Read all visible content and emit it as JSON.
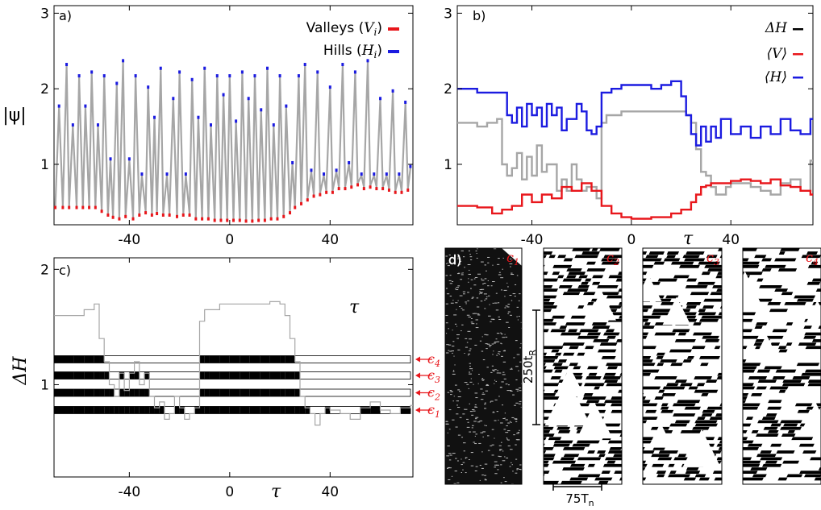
{
  "chart_data": [
    {
      "id": "a",
      "type": "line",
      "panel_label": "a)",
      "ylabel": "|ψ|",
      "xlim": [
        -70,
        73
      ],
      "ylim": [
        0.2,
        3.1
      ],
      "xticks": [
        -40,
        0,
        40
      ],
      "yticks": [
        1,
        2,
        3
      ],
      "legend_position": "top-right",
      "series": [
        {
          "name": "Valleys (V_i)",
          "label_main": "Valleys (",
          "label_sym": "V",
          "label_sub": "i",
          "label_tail": ")",
          "color": "#e8161b",
          "style": "markers"
        },
        {
          "name": "Hills (H_i)",
          "label_main": "Hills (",
          "label_sym": "H",
          "label_sub": "i",
          "label_tail": ")",
          "color": "#1b1be0",
          "style": "markers"
        }
      ],
      "trace_color": "#a6a6a6",
      "peaks": [
        {
          "x": -68,
          "y": 1.75
        },
        {
          "x": -65,
          "y": 2.3
        },
        {
          "x": -62.5,
          "y": 1.5
        },
        {
          "x": -60,
          "y": 2.15
        },
        {
          "x": -57.5,
          "y": 1.75
        },
        {
          "x": -55,
          "y": 2.2
        },
        {
          "x": -52.5,
          "y": 1.5
        },
        {
          "x": -50,
          "y": 2.15
        },
        {
          "x": -47.5,
          "y": 1.05
        },
        {
          "x": -45,
          "y": 2.05
        },
        {
          "x": -42.5,
          "y": 2.35
        },
        {
          "x": -40,
          "y": 1.05
        },
        {
          "x": -37.5,
          "y": 2.15
        },
        {
          "x": -35,
          "y": 0.85
        },
        {
          "x": -32.5,
          "y": 2.0
        },
        {
          "x": -30,
          "y": 1.6
        },
        {
          "x": -27.5,
          "y": 2.25
        },
        {
          "x": -25,
          "y": 0.85
        },
        {
          "x": -22.5,
          "y": 1.85
        },
        {
          "x": -20,
          "y": 2.2
        },
        {
          "x": -17.5,
          "y": 0.85
        },
        {
          "x": -15,
          "y": 2.1
        },
        {
          "x": -12.5,
          "y": 1.6
        },
        {
          "x": -10,
          "y": 2.25
        },
        {
          "x": -7.5,
          "y": 1.5
        },
        {
          "x": -5,
          "y": 2.15
        },
        {
          "x": -2.5,
          "y": 1.9
        },
        {
          "x": 0,
          "y": 2.15
        },
        {
          "x": 2.5,
          "y": 1.55
        },
        {
          "x": 5,
          "y": 2.2
        },
        {
          "x": 7.5,
          "y": 1.85
        },
        {
          "x": 10,
          "y": 2.15
        },
        {
          "x": 12.5,
          "y": 1.7
        },
        {
          "x": 15,
          "y": 2.25
        },
        {
          "x": 17.5,
          "y": 1.5
        },
        {
          "x": 20,
          "y": 2.15
        },
        {
          "x": 22.5,
          "y": 1.75
        },
        {
          "x": 25,
          "y": 1.0
        },
        {
          "x": 27.5,
          "y": 2.15
        },
        {
          "x": 30,
          "y": 2.3
        },
        {
          "x": 32.5,
          "y": 0.9
        },
        {
          "x": 35,
          "y": 2.2
        },
        {
          "x": 37.5,
          "y": 0.85
        },
        {
          "x": 40,
          "y": 2.0
        },
        {
          "x": 42.5,
          "y": 0.9
        },
        {
          "x": 45,
          "y": 2.3
        },
        {
          "x": 47.5,
          "y": 1.0
        },
        {
          "x": 50,
          "y": 2.2
        },
        {
          "x": 52.5,
          "y": 0.85
        },
        {
          "x": 55,
          "y": 2.35
        },
        {
          "x": 57.5,
          "y": 0.85
        },
        {
          "x": 60,
          "y": 1.85
        },
        {
          "x": 62.5,
          "y": 0.85
        },
        {
          "x": 65,
          "y": 1.95
        },
        {
          "x": 67.5,
          "y": 0.85
        },
        {
          "x": 70,
          "y": 1.8
        },
        {
          "x": 72,
          "y": 0.95
        }
      ],
      "valleys": [
        {
          "x": -69.5,
          "y": 0.45
        },
        {
          "x": -66.5,
          "y": 0.45
        },
        {
          "x": -64,
          "y": 0.45
        },
        {
          "x": -61,
          "y": 0.45
        },
        {
          "x": -58.5,
          "y": 0.45
        },
        {
          "x": -56,
          "y": 0.45
        },
        {
          "x": -53.5,
          "y": 0.45
        },
        {
          "x": -51,
          "y": 0.4
        },
        {
          "x": -48.5,
          "y": 0.35
        },
        {
          "x": -46.5,
          "y": 0.32
        },
        {
          "x": -44,
          "y": 0.3
        },
        {
          "x": -41.5,
          "y": 0.33
        },
        {
          "x": -38.5,
          "y": 0.3
        },
        {
          "x": -36,
          "y": 0.35
        },
        {
          "x": -33.5,
          "y": 0.38
        },
        {
          "x": -31,
          "y": 0.35
        },
        {
          "x": -29,
          "y": 0.37
        },
        {
          "x": -26.5,
          "y": 0.35
        },
        {
          "x": -24,
          "y": 0.35
        },
        {
          "x": -21,
          "y": 0.33
        },
        {
          "x": -18.5,
          "y": 0.35
        },
        {
          "x": -16,
          "y": 0.35
        },
        {
          "x": -13.5,
          "y": 0.3
        },
        {
          "x": -11,
          "y": 0.3
        },
        {
          "x": -8.5,
          "y": 0.3
        },
        {
          "x": -6,
          "y": 0.28
        },
        {
          "x": -3.5,
          "y": 0.28
        },
        {
          "x": -1,
          "y": 0.28
        },
        {
          "x": 1.5,
          "y": 0.28
        },
        {
          "x": 4,
          "y": 0.28
        },
        {
          "x": 6.5,
          "y": 0.27
        },
        {
          "x": 9,
          "y": 0.27
        },
        {
          "x": 11.5,
          "y": 0.28
        },
        {
          "x": 14,
          "y": 0.28
        },
        {
          "x": 16.5,
          "y": 0.3
        },
        {
          "x": 19,
          "y": 0.3
        },
        {
          "x": 21.5,
          "y": 0.33
        },
        {
          "x": 24,
          "y": 0.38
        },
        {
          "x": 26,
          "y": 0.45
        },
        {
          "x": 28.5,
          "y": 0.5
        },
        {
          "x": 31,
          "y": 0.55
        },
        {
          "x": 33.5,
          "y": 0.6
        },
        {
          "x": 36,
          "y": 0.62
        },
        {
          "x": 38.5,
          "y": 0.65
        },
        {
          "x": 41,
          "y": 0.65
        },
        {
          "x": 43.5,
          "y": 0.7
        },
        {
          "x": 46,
          "y": 0.7
        },
        {
          "x": 48.5,
          "y": 0.72
        },
        {
          "x": 51,
          "y": 0.75
        },
        {
          "x": 53.5,
          "y": 0.7
        },
        {
          "x": 56,
          "y": 0.72
        },
        {
          "x": 58.5,
          "y": 0.7
        },
        {
          "x": 61,
          "y": 0.7
        },
        {
          "x": 63.5,
          "y": 0.68
        },
        {
          "x": 66,
          "y": 0.65
        },
        {
          "x": 68.5,
          "y": 0.65
        },
        {
          "x": 71,
          "y": 0.68
        }
      ]
    },
    {
      "id": "b",
      "type": "line",
      "panel_label": "b)",
      "xlabel": "τ",
      "xlim": [
        -70,
        73
      ],
      "ylim": [
        0.2,
        3.1
      ],
      "xticks": [
        -40,
        0,
        40
      ],
      "yticks": [
        1,
        2,
        3
      ],
      "legend_position": "top-right",
      "series": [
        {
          "name": "ΔH",
          "label_sym": "ΔH",
          "color": "#000000",
          "line_color": "#a6a6a6",
          "x": [
            -70,
            -62,
            -58,
            -54,
            -52,
            -50,
            -48,
            -46,
            -44,
            -42,
            -40,
            -38,
            -36,
            -34,
            -32,
            -30,
            -28,
            -26,
            -24,
            -22,
            -20,
            -18,
            -16,
            -14,
            -12,
            -10,
            -8,
            -4,
            0,
            4,
            8,
            12,
            16,
            20,
            22,
            24,
            26,
            28,
            30,
            32,
            34,
            36,
            38,
            40,
            44,
            48,
            52,
            56,
            60,
            64,
            68,
            72
          ],
          "y": [
            1.55,
            1.5,
            1.55,
            1.6,
            1.0,
            0.85,
            0.95,
            1.15,
            0.8,
            1.1,
            0.85,
            1.25,
            0.9,
            1.0,
            1.0,
            0.65,
            0.8,
            0.65,
            1.0,
            0.8,
            0.65,
            0.7,
            0.7,
            0.55,
            1.55,
            1.65,
            1.65,
            1.7,
            1.7,
            1.7,
            1.7,
            1.7,
            1.7,
            1.7,
            1.65,
            1.55,
            1.2,
            0.9,
            0.85,
            0.7,
            0.6,
            0.6,
            0.7,
            0.75,
            0.75,
            0.7,
            0.65,
            0.6,
            0.75,
            0.8,
            0.65,
            1.05
          ]
        },
        {
          "name": "⟨V⟩",
          "label_sym": "⟨V⟩",
          "color": "#e8161b",
          "x": [
            -70,
            -62,
            -56,
            -52,
            -48,
            -44,
            -40,
            -36,
            -32,
            -28,
            -24,
            -20,
            -16,
            -12,
            -8,
            -4,
            0,
            4,
            8,
            12,
            16,
            20,
            24,
            26,
            28,
            30,
            32,
            36,
            40,
            44,
            48,
            52,
            56,
            60,
            64,
            68,
            72
          ],
          "y": [
            0.45,
            0.43,
            0.35,
            0.4,
            0.45,
            0.6,
            0.5,
            0.6,
            0.55,
            0.7,
            0.65,
            0.75,
            0.65,
            0.45,
            0.35,
            0.3,
            0.28,
            0.28,
            0.3,
            0.3,
            0.35,
            0.4,
            0.5,
            0.6,
            0.7,
            0.72,
            0.75,
            0.75,
            0.78,
            0.8,
            0.78,
            0.75,
            0.8,
            0.72,
            0.7,
            0.65,
            0.6
          ]
        },
        {
          "name": "⟨H⟩",
          "label_sym": "⟨H⟩",
          "color": "#1b1be0",
          "x": [
            -70,
            -62,
            -58,
            -52,
            -50,
            -48,
            -46,
            -44,
            -42,
            -40,
            -38,
            -36,
            -34,
            -32,
            -30,
            -28,
            -26,
            -24,
            -22,
            -20,
            -18,
            -16,
            -14,
            -12,
            -8,
            -4,
            0,
            4,
            8,
            12,
            16,
            20,
            22,
            24,
            26,
            28,
            30,
            32,
            34,
            36,
            40,
            44,
            48,
            52,
            56,
            60,
            64,
            68,
            72
          ],
          "y": [
            2.0,
            1.95,
            1.95,
            1.95,
            1.65,
            1.55,
            1.75,
            1.5,
            1.8,
            1.65,
            1.75,
            1.5,
            1.8,
            1.65,
            1.75,
            1.45,
            1.6,
            1.6,
            1.8,
            1.7,
            1.45,
            1.4,
            1.5,
            1.95,
            2.0,
            2.05,
            2.05,
            2.05,
            2.0,
            2.05,
            2.1,
            1.9,
            1.65,
            1.4,
            1.25,
            1.5,
            1.3,
            1.5,
            1.35,
            1.6,
            1.4,
            1.5,
            1.35,
            1.5,
            1.4,
            1.6,
            1.45,
            1.4,
            1.6
          ]
        }
      ]
    },
    {
      "id": "c",
      "type": "line",
      "panel_label": "c)",
      "xlabel": "τ",
      "ylabel": "ΔH",
      "annotation": "τ",
      "xlim": [
        -70,
        73
      ],
      "ylim": [
        0.2,
        2.1
      ],
      "xticks": [
        -40,
        0,
        40
      ],
      "yticks": [
        1,
        2
      ],
      "line_color": "#a6a6a6",
      "x": [
        -70,
        -62,
        -58,
        -54,
        -52,
        -50,
        -48,
        -46,
        -44,
        -42,
        -40,
        -38,
        -36,
        -34,
        -32,
        -30,
        -28,
        -26,
        -24,
        -22,
        -20,
        -18,
        -16,
        -14,
        -12,
        -10,
        -8,
        -4,
        0,
        4,
        8,
        12,
        16,
        20,
        22,
        24,
        26,
        28,
        30,
        32,
        34,
        36,
        38,
        40,
        44,
        48,
        52,
        56,
        60,
        64,
        68,
        72
      ],
      "y": [
        1.6,
        1.6,
        1.65,
        1.7,
        1.4,
        1.2,
        1.0,
        0.9,
        1.1,
        0.95,
        1.1,
        1.2,
        1.0,
        1.1,
        0.9,
        0.8,
        0.85,
        0.7,
        0.75,
        0.9,
        0.8,
        0.7,
        0.75,
        0.8,
        1.55,
        1.65,
        1.65,
        1.7,
        1.7,
        1.7,
        1.7,
        1.7,
        1.72,
        1.7,
        1.6,
        1.4,
        1.2,
        0.9,
        0.8,
        0.75,
        0.65,
        0.75,
        0.8,
        0.78,
        0.75,
        0.7,
        0.8,
        0.85,
        0.78,
        0.75,
        0.8,
        0.82
      ],
      "thresholds": [
        {
          "name": "c1",
          "label": "c",
          "sub": "1",
          "y": 0.78
        },
        {
          "name": "c2",
          "label": "c",
          "sub": "2",
          "y": 0.93
        },
        {
          "name": "c3",
          "label": "c",
          "sub": "3",
          "y": 1.08
        },
        {
          "name": "c4",
          "label": "c",
          "sub": "4",
          "y": 1.22
        }
      ],
      "marker_color": "#e8161b"
    },
    {
      "id": "d",
      "type": "image",
      "panel_label": "d)",
      "subpanels": [
        {
          "label": "c",
          "sub": "1",
          "coverage": 0.75
        },
        {
          "label": "c",
          "sub": "2",
          "coverage": 0.5
        },
        {
          "label": "c",
          "sub": "3",
          "coverage": 0.42
        },
        {
          "label": "c",
          "sub": "4",
          "coverage": 0.38
        }
      ],
      "vertical_scale": {
        "text": "250t",
        "sub": "R"
      },
      "horizontal_scale": {
        "text": "75T",
        "sub": "n"
      },
      "label_color": "#e8161b"
    }
  ]
}
